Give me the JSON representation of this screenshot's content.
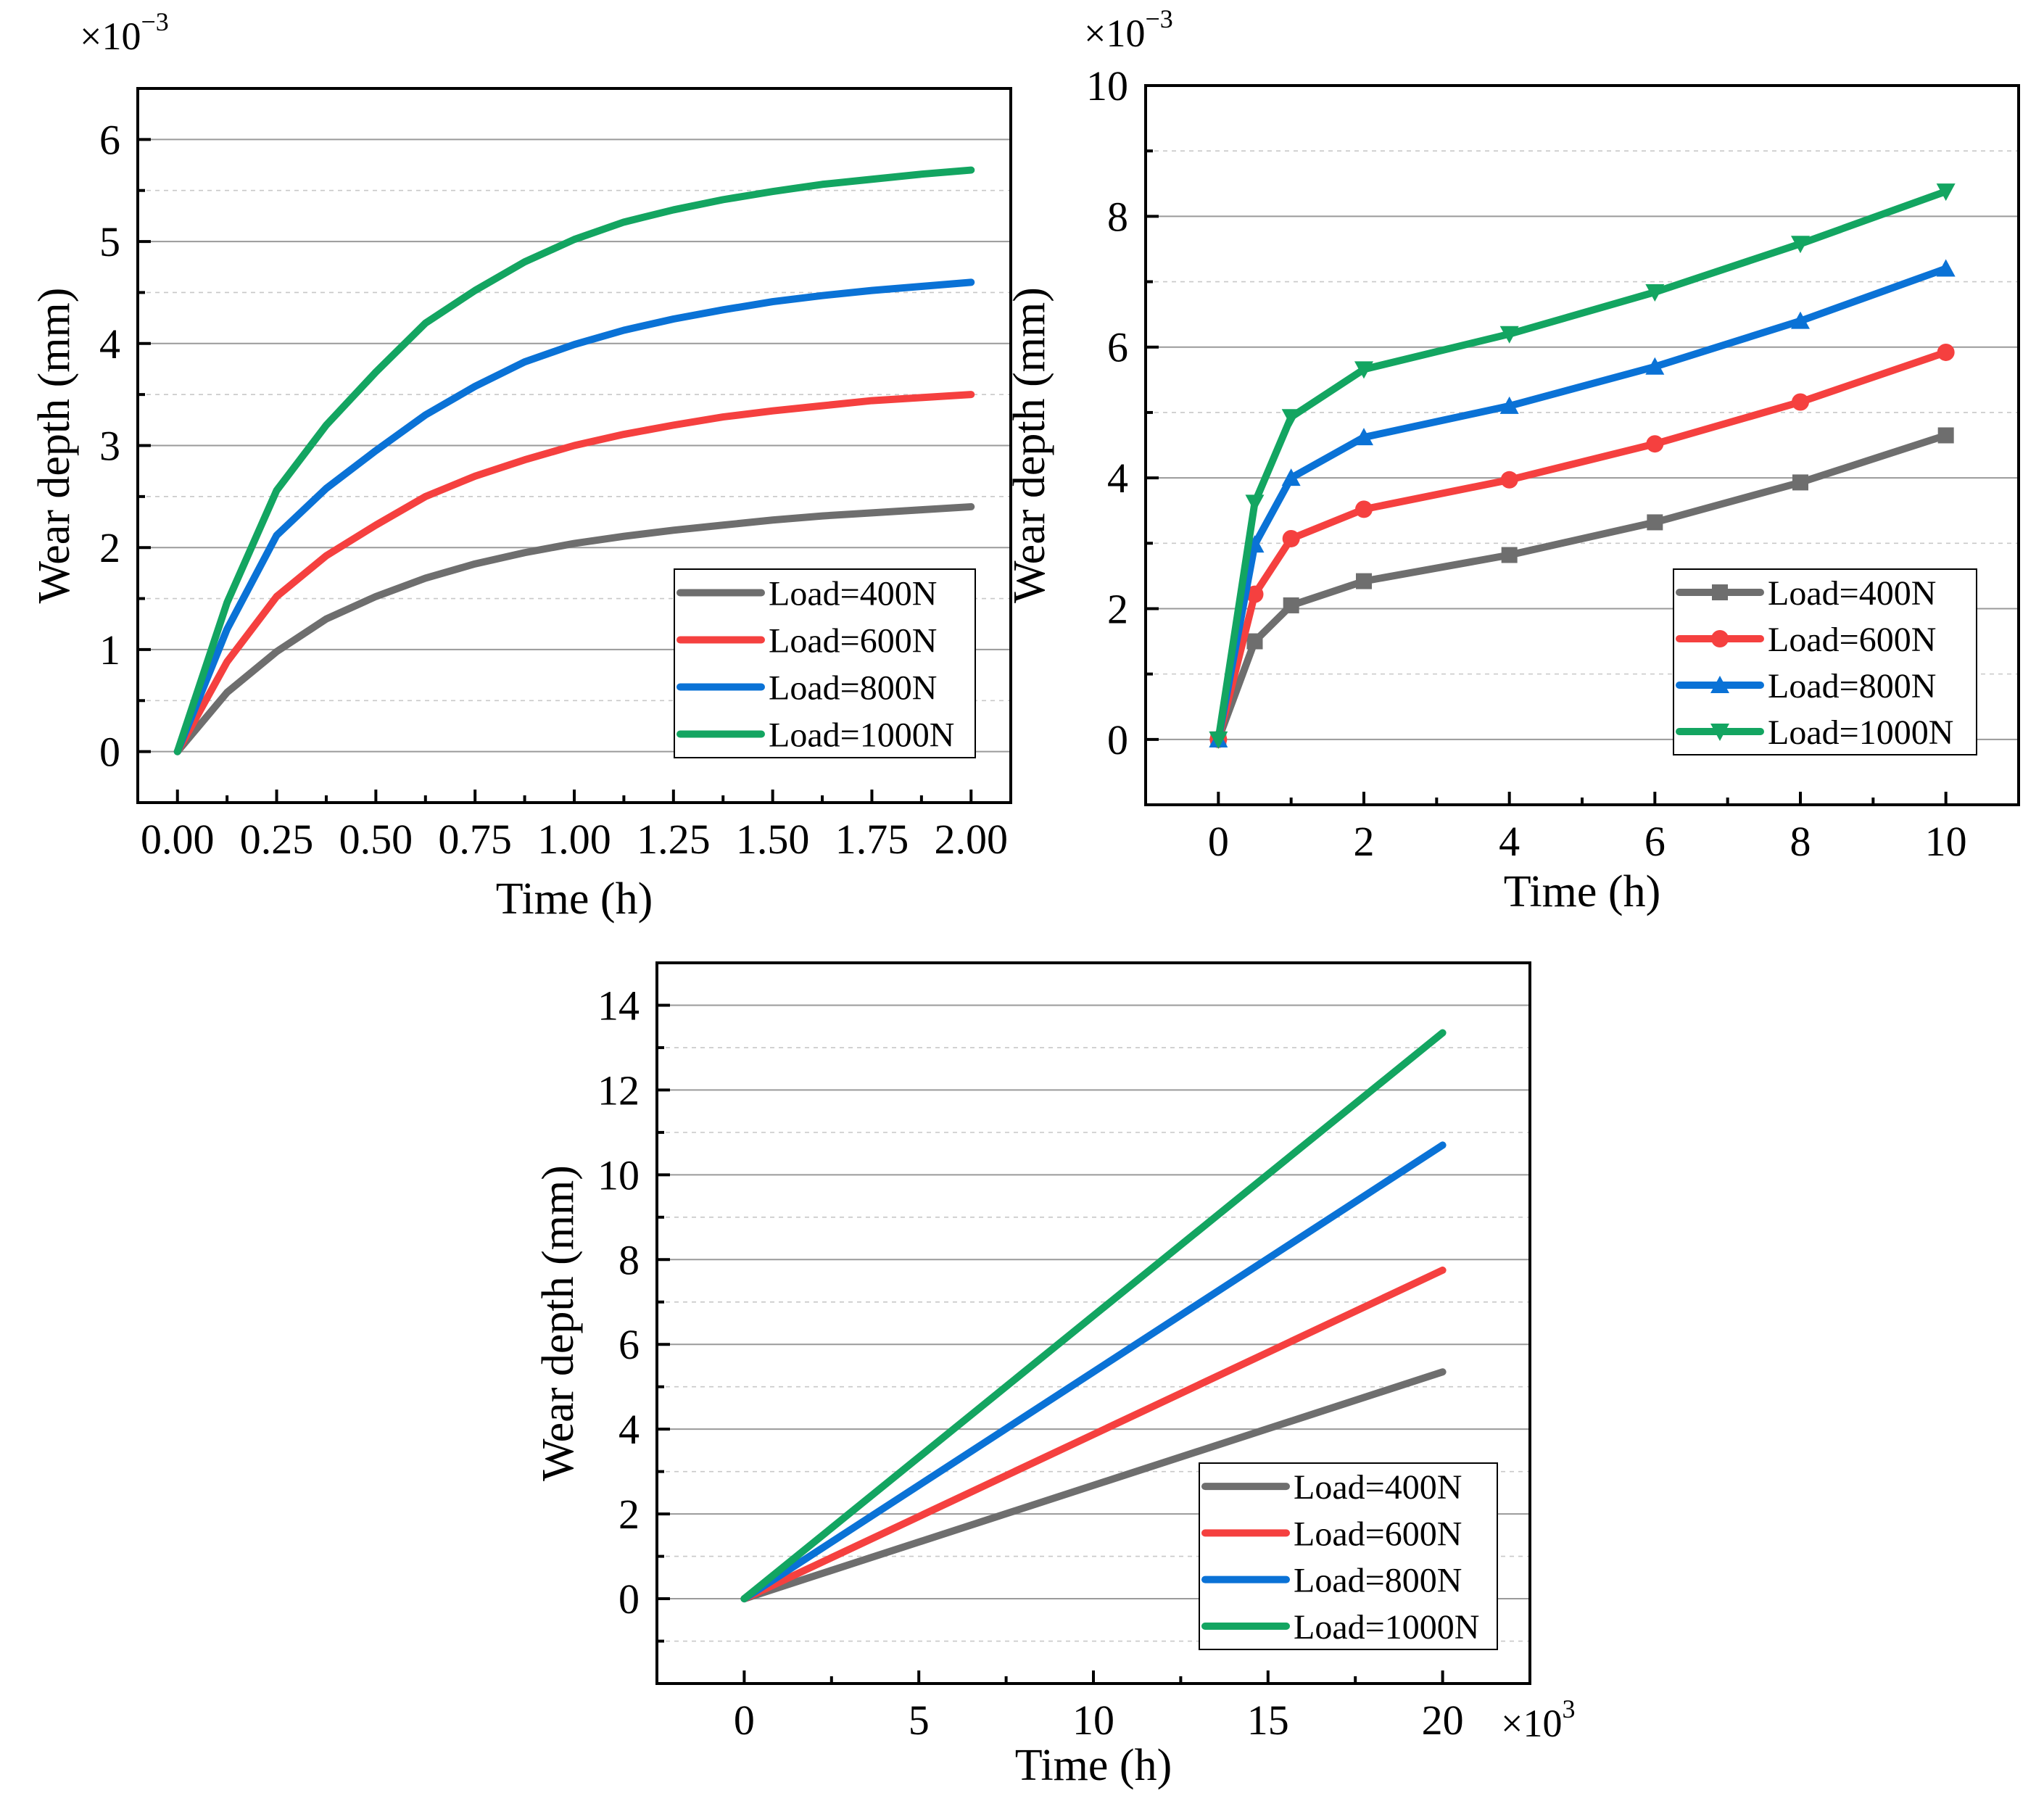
{
  "colors": {
    "load400": "#6e6e6e",
    "load600": "#f5403f",
    "load800": "#0a72d6",
    "load1000": "#13a561",
    "grid_major": "#9a9a9a",
    "grid_minor": "#c8c8c8"
  },
  "chart_data": [
    {
      "type": "line",
      "xlabel": "Time (h)",
      "ylabel": "Wear depth (mm)",
      "y_multiplier": "×10",
      "y_multiplier_exp": "−3",
      "xlim": [
        -0.1,
        2.1
      ],
      "ylim": [
        -0.5,
        6.5
      ],
      "xticks": [
        0,
        0.25,
        0.5,
        0.75,
        1.0,
        1.25,
        1.5,
        1.75,
        2.0
      ],
      "xtick_labels": [
        "0.00",
        "0.25",
        "0.50",
        "0.75",
        "1.00",
        "1.25",
        "1.50",
        "1.75",
        "2.00"
      ],
      "yticks": [
        0,
        1,
        2,
        3,
        4,
        5,
        6
      ],
      "ytick_labels": [
        "0",
        "1",
        "2",
        "3",
        "4",
        "5",
        "6"
      ],
      "grid": true,
      "legend_position": "bottom-right",
      "x": [
        0,
        0.125,
        0.25,
        0.375,
        0.5,
        0.625,
        0.75,
        0.875,
        1.0,
        1.125,
        1.25,
        1.375,
        1.5,
        1.625,
        1.75,
        1.875,
        2.0
      ],
      "series": [
        {
          "name": "Load=400N",
          "color_key": "load400",
          "marker": "none",
          "values": [
            0,
            0.58,
            0.98,
            1.3,
            1.52,
            1.7,
            1.84,
            1.95,
            2.04,
            2.11,
            2.17,
            2.22,
            2.27,
            2.31,
            2.34,
            2.37,
            2.4
          ]
        },
        {
          "name": "Load=600N",
          "color_key": "load600",
          "marker": "none",
          "values": [
            0,
            0.88,
            1.52,
            1.92,
            2.22,
            2.5,
            2.7,
            2.86,
            3.0,
            3.11,
            3.2,
            3.28,
            3.34,
            3.39,
            3.44,
            3.47,
            3.5
          ]
        },
        {
          "name": "Load=800N",
          "color_key": "load800",
          "marker": "none",
          "values": [
            0,
            1.2,
            2.12,
            2.58,
            2.95,
            3.3,
            3.58,
            3.82,
            3.99,
            4.13,
            4.24,
            4.33,
            4.41,
            4.47,
            4.52,
            4.56,
            4.6
          ]
        },
        {
          "name": "Load=1000N",
          "color_key": "load1000",
          "marker": "none",
          "values": [
            0,
            1.46,
            2.56,
            3.2,
            3.72,
            4.2,
            4.52,
            4.8,
            5.02,
            5.19,
            5.31,
            5.41,
            5.49,
            5.56,
            5.61,
            5.66,
            5.7
          ]
        }
      ]
    },
    {
      "type": "line",
      "xlabel": "Time (h)",
      "ylabel": "Wear depth (mm)",
      "y_multiplier": "×10",
      "y_multiplier_exp": "−3",
      "xlim": [
        -1,
        11
      ],
      "ylim": [
        -1,
        10
      ],
      "xticks": [
        0,
        2,
        4,
        6,
        8,
        10
      ],
      "xtick_labels": [
        "0",
        "2",
        "4",
        "6",
        "8",
        "10"
      ],
      "yticks": [
        0,
        2,
        4,
        6,
        8,
        10
      ],
      "ytick_labels": [
        "0",
        "2",
        "4",
        "6",
        "8",
        "10"
      ],
      "grid": true,
      "legend_position": "bottom-right",
      "x": [
        0,
        0.5,
        1,
        2,
        4,
        6,
        8,
        10
      ],
      "series": [
        {
          "name": "Load=400N",
          "color_key": "load400",
          "marker": "square",
          "values": [
            0,
            1.5,
            2.05,
            2.42,
            2.82,
            3.32,
            3.93,
            4.65
          ]
        },
        {
          "name": "Load=600N",
          "color_key": "load600",
          "marker": "circle",
          "values": [
            0,
            2.22,
            3.07,
            3.52,
            3.97,
            4.52,
            5.16,
            5.92
          ]
        },
        {
          "name": "Load=800N",
          "color_key": "load800",
          "marker": "triangle-up",
          "values": [
            0,
            2.98,
            4.0,
            4.62,
            5.1,
            5.7,
            6.4,
            7.2
          ]
        },
        {
          "name": "Load=1000N",
          "color_key": "load1000",
          "marker": "triangle-down",
          "values": [
            0,
            3.62,
            4.93,
            5.66,
            6.2,
            6.84,
            7.58,
            8.38
          ]
        }
      ]
    },
    {
      "type": "line",
      "xlabel": "Time (h)",
      "ylabel": "Wear depth (mm)",
      "x_multiplier": "×10",
      "x_multiplier_exp": "3",
      "xlim": [
        -2.5,
        22.5
      ],
      "ylim": [
        -2,
        15
      ],
      "xticks": [
        0,
        5,
        10,
        15,
        20
      ],
      "xtick_labels": [
        "0",
        "5",
        "10",
        "15",
        "20"
      ],
      "yticks": [
        0,
        2,
        4,
        6,
        8,
        10,
        12,
        14
      ],
      "ytick_labels": [
        "0",
        "2",
        "4",
        "6",
        "8",
        "10",
        "12",
        "14"
      ],
      "grid": true,
      "legend_position": "bottom-right",
      "x": [
        0,
        20
      ],
      "series": [
        {
          "name": "Load=400N",
          "color_key": "load400",
          "marker": "none",
          "values": [
            0,
            5.35
          ]
        },
        {
          "name": "Load=600N",
          "color_key": "load600",
          "marker": "none",
          "values": [
            0,
            7.75
          ]
        },
        {
          "name": "Load=800N",
          "color_key": "load800",
          "marker": "none",
          "values": [
            0,
            10.7
          ]
        },
        {
          "name": "Load=1000N",
          "color_key": "load1000",
          "marker": "none",
          "values": [
            0,
            13.35
          ]
        }
      ]
    }
  ]
}
